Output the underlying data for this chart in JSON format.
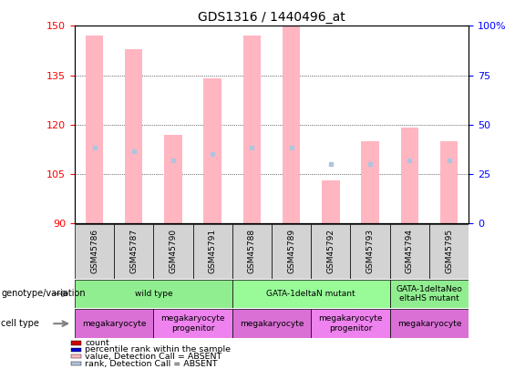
{
  "title": "GDS1316 / 1440496_at",
  "samples": [
    "GSM45786",
    "GSM45787",
    "GSM45790",
    "GSM45791",
    "GSM45788",
    "GSM45789",
    "GSM45792",
    "GSM45793",
    "GSM45794",
    "GSM45795"
  ],
  "bar_values": [
    147,
    143,
    117,
    134,
    147,
    150,
    103,
    115,
    119,
    115
  ],
  "rank_values": [
    113,
    112,
    109,
    111,
    113,
    113,
    108,
    108,
    109,
    109
  ],
  "ylim": [
    90,
    150
  ],
  "yticks": [
    90,
    105,
    120,
    135,
    150
  ],
  "right_yticks": [
    0,
    25,
    50,
    75,
    100
  ],
  "bar_color_absent": "#FFB6C1",
  "rank_color_absent": "#B0C4DE",
  "genotype_groups": [
    {
      "label": "wild type",
      "start": 0,
      "end": 4,
      "color": "#90EE90"
    },
    {
      "label": "GATA-1deltaN mutant",
      "start": 4,
      "end": 8,
      "color": "#98FB98"
    },
    {
      "label": "GATA-1deltaNeo\neltaHS mutant",
      "start": 8,
      "end": 10,
      "color": "#90EE90"
    }
  ],
  "cell_type_groups": [
    {
      "label": "megakaryocyte",
      "start": 0,
      "end": 2,
      "color": "#DA70D6"
    },
    {
      "label": "megakaryocyte\nprogenitor",
      "start": 2,
      "end": 4,
      "color": "#EE82EE"
    },
    {
      "label": "megakaryocyte",
      "start": 4,
      "end": 6,
      "color": "#DA70D6"
    },
    {
      "label": "megakaryocyte\nprogenitor",
      "start": 6,
      "end": 8,
      "color": "#EE82EE"
    },
    {
      "label": "megakaryocyte",
      "start": 8,
      "end": 10,
      "color": "#DA70D6"
    }
  ],
  "legend_items": [
    {
      "label": "count",
      "color": "#CC0000"
    },
    {
      "label": "percentile rank within the sample",
      "color": "#0000CC"
    },
    {
      "label": "value, Detection Call = ABSENT",
      "color": "#FFB6C1"
    },
    {
      "label": "rank, Detection Call = ABSENT",
      "color": "#B0C4DE"
    }
  ]
}
